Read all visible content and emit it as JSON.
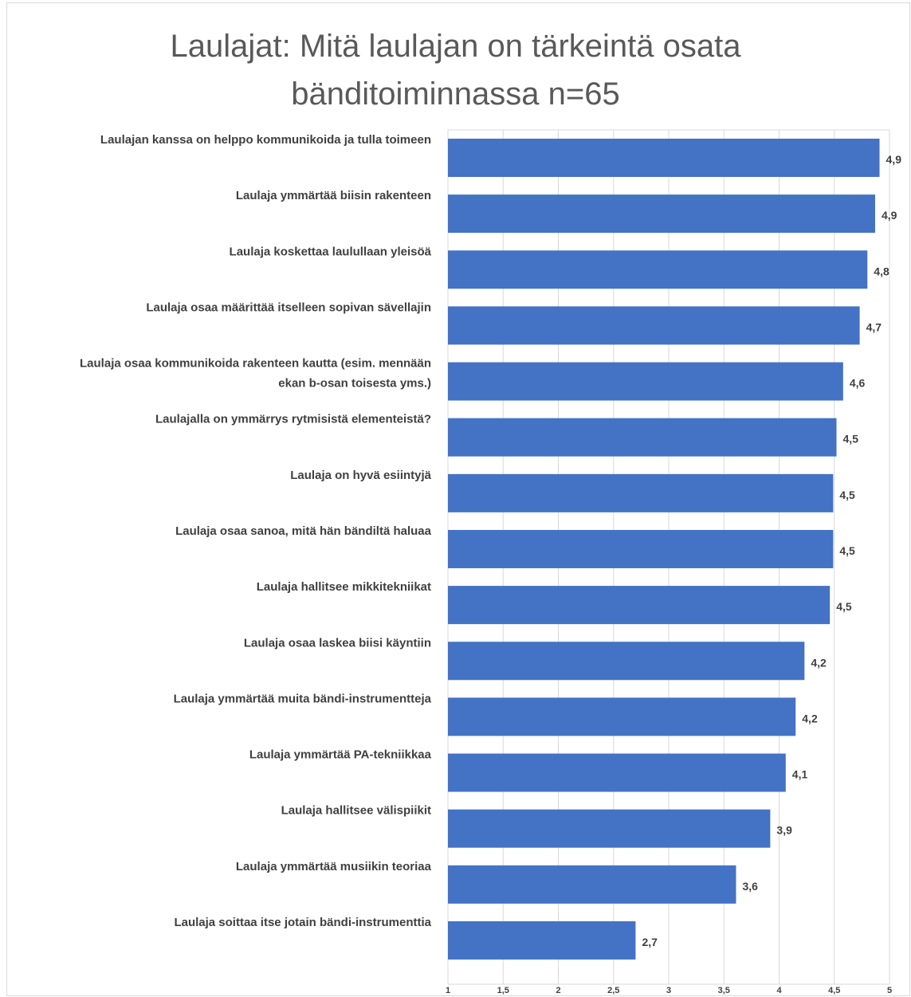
{
  "chart_data": {
    "type": "bar",
    "orientation": "horizontal",
    "title_lines": [
      "Laulajat: Mitä laulajan on tärkeintä osata",
      "bänditoiminnassa  n=65"
    ],
    "categories": [
      [
        "Laulajan kanssa on helppo  kommunikoida ja tulla toimeen"
      ],
      [
        "Laulaja ymmärtää biisin rakenteen"
      ],
      [
        "Laulaja koskettaa laulullaan yleisöä"
      ],
      [
        "Laulaja osaa määrittää itselleen sopivan sävellajin"
      ],
      [
        "Laulaja osaa kommunikoida rakenteen kautta (esim. mennään",
        "ekan b-osan toisesta yms.)"
      ],
      [
        "Laulajalla on ymmärrys rytmisistä elementeistä?"
      ],
      [
        "Laulaja on hyvä esiintyjä"
      ],
      [
        "Laulaja osaa sanoa, mitä hän bändiltä haluaa"
      ],
      [
        "Laulaja hallitsee mikkitekniikat"
      ],
      [
        "Laulaja osaa laskea biisi käyntiin"
      ],
      [
        "Laulaja ymmärtää muita bändi-instrumentteja"
      ],
      [
        "Laulaja ymmärtää PA-tekniikkaa"
      ],
      [
        "Laulaja hallitsee välispiikit"
      ],
      [
        "Laulaja ymmärtää musiikin teoriaa"
      ],
      [
        "Laulaja soittaa itse jotain bändi-instrumenttia"
      ]
    ],
    "values": [
      4.91,
      4.87,
      4.8,
      4.73,
      4.58,
      4.52,
      4.49,
      4.49,
      4.46,
      4.23,
      4.15,
      4.06,
      3.92,
      3.61,
      2.7
    ],
    "value_labels": [
      "4,9",
      "4,9",
      "4,8",
      "4,7",
      "4,6",
      "4,5",
      "4,5",
      "4,5",
      "4,5",
      "4,2",
      "4,2",
      "4,1",
      "3,9",
      "3,6",
      "2,7"
    ],
    "xlim": [
      1,
      5
    ],
    "x_ticks": [
      1,
      1.5,
      2,
      2.5,
      3,
      3.5,
      4,
      4.5,
      5
    ],
    "x_tick_labels": [
      "1",
      "1,5",
      "2",
      "2,5",
      "3",
      "3,5",
      "4",
      "4,5",
      "5"
    ],
    "grid": true,
    "bar_color": "#4472c4",
    "grid_color": "#d9d9d9"
  }
}
